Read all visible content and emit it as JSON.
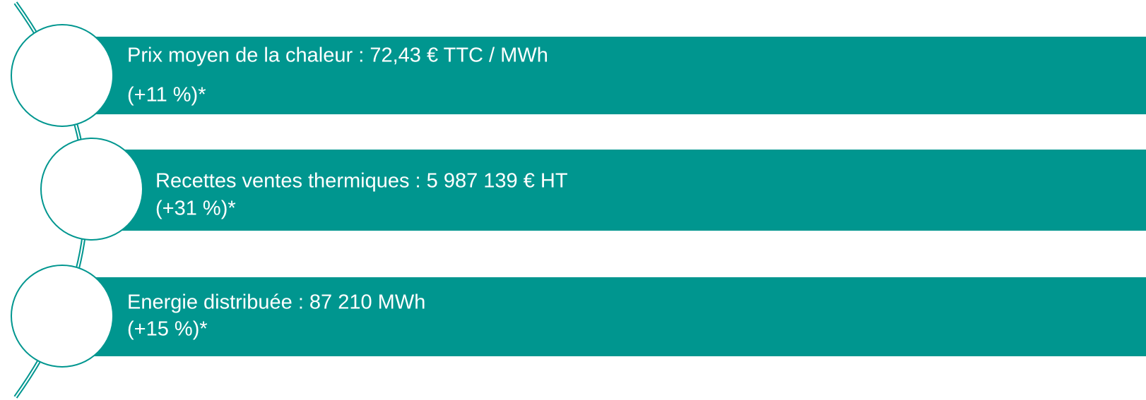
{
  "items": [
    {
      "line1": "Prix moyen de la chaleur : 72,43 € TTC / MWh",
      "line2": "(+11 %)*"
    },
    {
      "line1": "Recettes ventes thermiques : 5 987 139 € HT",
      "line2": "(+31 %)*"
    },
    {
      "line1": "Energie distribuée : 87 210 MWh",
      "line2": "(+15 %)*"
    }
  ]
}
